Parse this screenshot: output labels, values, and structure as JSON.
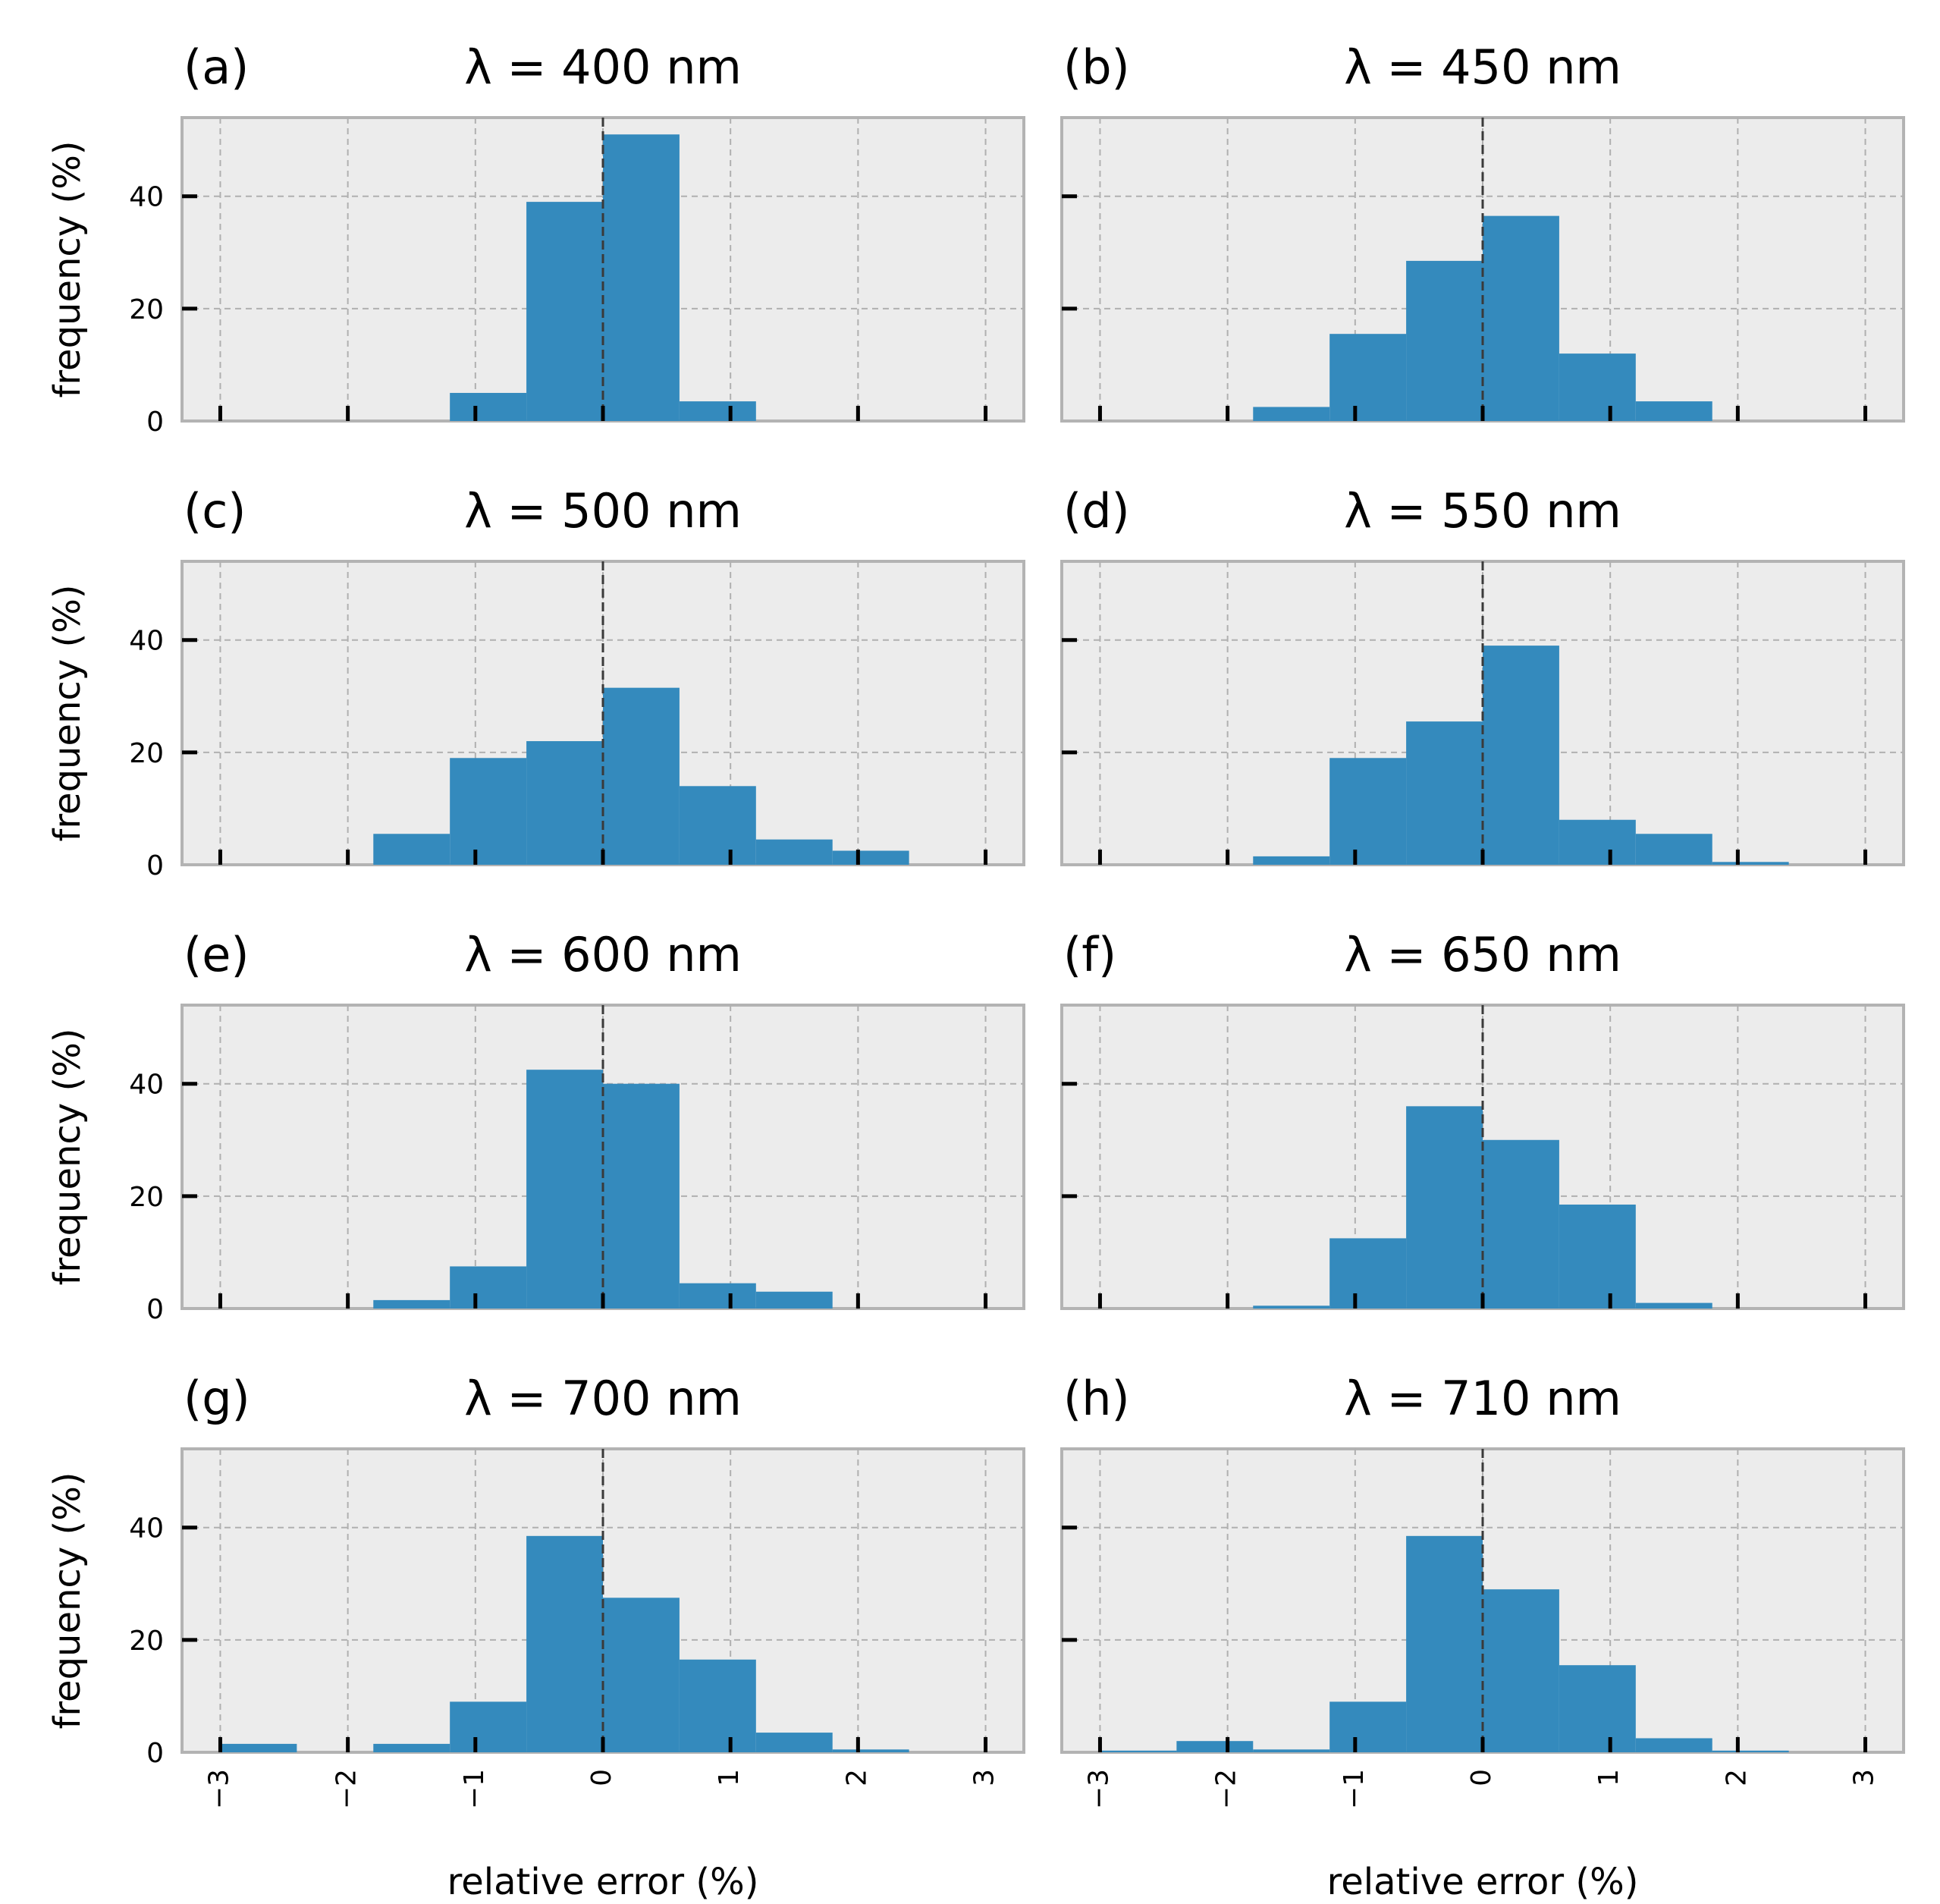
{
  "figure": {
    "shared_xlabel": "relative error (%)",
    "shared_ylabel": "frequency (%)",
    "bar_color": "#348abd",
    "axes_facecolor": "#ececec",
    "zero_line_color": "#3a3a3a"
  },
  "chart_data": [
    {
      "type": "bar",
      "panel": "(a)",
      "title": "λ = 400 nm",
      "xlabel": "relative error (%)",
      "ylabel": "frequency (%)",
      "xlim": [
        -3.3,
        3.3
      ],
      "ylim": [
        0,
        54
      ],
      "xticks": [
        "−3",
        "−2",
        "−1",
        "0",
        "1",
        "2",
        "3"
      ],
      "yticks": [
        "0",
        "20",
        "40"
      ],
      "bin_edges": [
        -1.2,
        -0.6,
        0,
        0.6,
        1.2
      ],
      "values": [
        5,
        39,
        51,
        3.5
      ]
    },
    {
      "type": "bar",
      "panel": "(b)",
      "title": "λ = 450 nm",
      "xlabel": "relative error (%)",
      "ylabel": "",
      "xlim": [
        -3.3,
        3.3
      ],
      "ylim": [
        0,
        54
      ],
      "xticks": [
        "−3",
        "−2",
        "−1",
        "0",
        "1",
        "2",
        "3"
      ],
      "yticks": [],
      "bin_edges": [
        -1.8,
        -1.2,
        -0.6,
        0,
        0.6,
        1.2,
        1.8
      ],
      "values": [
        2.5,
        15.5,
        28.5,
        36.5,
        12,
        3.5
      ]
    },
    {
      "type": "bar",
      "panel": "(c)",
      "title": "λ = 500 nm",
      "xlabel": "relative error (%)",
      "ylabel": "frequency (%)",
      "xlim": [
        -3.3,
        3.3
      ],
      "ylim": [
        0,
        54
      ],
      "xticks": [
        "−3",
        "−2",
        "−1",
        "0",
        "1",
        "2",
        "3"
      ],
      "yticks": [
        "0",
        "20",
        "40"
      ],
      "bin_edges": [
        -1.8,
        -1.2,
        -0.6,
        0,
        0.6,
        1.2,
        1.8,
        2.4
      ],
      "values": [
        5.5,
        19,
        22,
        31.5,
        14,
        4.5,
        2.5
      ]
    },
    {
      "type": "bar",
      "panel": "(d)",
      "title": "λ = 550 nm",
      "xlabel": "relative error (%)",
      "ylabel": "",
      "xlim": [
        -3.3,
        3.3
      ],
      "ylim": [
        0,
        54
      ],
      "xticks": [
        "−3",
        "−2",
        "−1",
        "0",
        "1",
        "2",
        "3"
      ],
      "yticks": [],
      "bin_edges": [
        -1.8,
        -1.2,
        -0.6,
        0,
        0.6,
        1.2,
        1.8,
        2.4
      ],
      "values": [
        1.5,
        19,
        25.5,
        39,
        8,
        5.5,
        0.5
      ]
    },
    {
      "type": "bar",
      "panel": "(e)",
      "title": "λ = 600 nm",
      "xlabel": "relative error (%)",
      "ylabel": "frequency (%)",
      "xlim": [
        -3.3,
        3.3
      ],
      "ylim": [
        0,
        54
      ],
      "xticks": [
        "−3",
        "−2",
        "−1",
        "0",
        "1",
        "2",
        "3"
      ],
      "yticks": [
        "0",
        "20",
        "40"
      ],
      "bin_edges": [
        -1.8,
        -1.2,
        -0.6,
        0,
        0.6,
        1.2,
        1.8
      ],
      "values": [
        1.5,
        7.5,
        42.5,
        40,
        4.5,
        3
      ]
    },
    {
      "type": "bar",
      "panel": "(f)",
      "title": "λ = 650 nm",
      "xlabel": "relative error (%)",
      "ylabel": "",
      "xlim": [
        -3.3,
        3.3
      ],
      "ylim": [
        0,
        54
      ],
      "xticks": [
        "−3",
        "−2",
        "−1",
        "0",
        "1",
        "2",
        "3"
      ],
      "yticks": [],
      "bin_edges": [
        -1.8,
        -1.2,
        -0.6,
        0,
        0.6,
        1.2,
        1.8
      ],
      "values": [
        0.5,
        12.5,
        36,
        30,
        18.5,
        1
      ]
    },
    {
      "type": "bar",
      "panel": "(g)",
      "title": "λ = 700 nm",
      "xlabel": "relative error (%)",
      "ylabel": "frequency (%)",
      "xlim": [
        -3.3,
        3.3
      ],
      "ylim": [
        0,
        54
      ],
      "xticks": [
        "−3",
        "−2",
        "−1",
        "0",
        "1",
        "2",
        "3"
      ],
      "yticks": [
        "0",
        "20",
        "40"
      ],
      "bin_edges": [
        -3,
        -2.4,
        -1.8,
        -1.2,
        -0.6,
        0,
        0.6,
        1.2,
        1.8,
        2.4
      ],
      "values": [
        1.5,
        0,
        1.5,
        9,
        38.5,
        27.5,
        16.5,
        3.5,
        0.5
      ]
    },
    {
      "type": "bar",
      "panel": "(h)",
      "title": "λ = 710 nm",
      "xlabel": "relative error (%)",
      "ylabel": "",
      "xlim": [
        -3.3,
        3.3
      ],
      "ylim": [
        0,
        54
      ],
      "xticks": [
        "−3",
        "−2",
        "−1",
        "0",
        "1",
        "2",
        "3"
      ],
      "yticks": [],
      "bin_edges": [
        -3,
        -2.4,
        -1.8,
        -1.2,
        -0.6,
        0,
        0.6,
        1.2,
        1.8,
        2.4
      ],
      "values": [
        0.3,
        2,
        0.5,
        9,
        38.5,
        29,
        15.5,
        2.5,
        0.3
      ]
    }
  ]
}
